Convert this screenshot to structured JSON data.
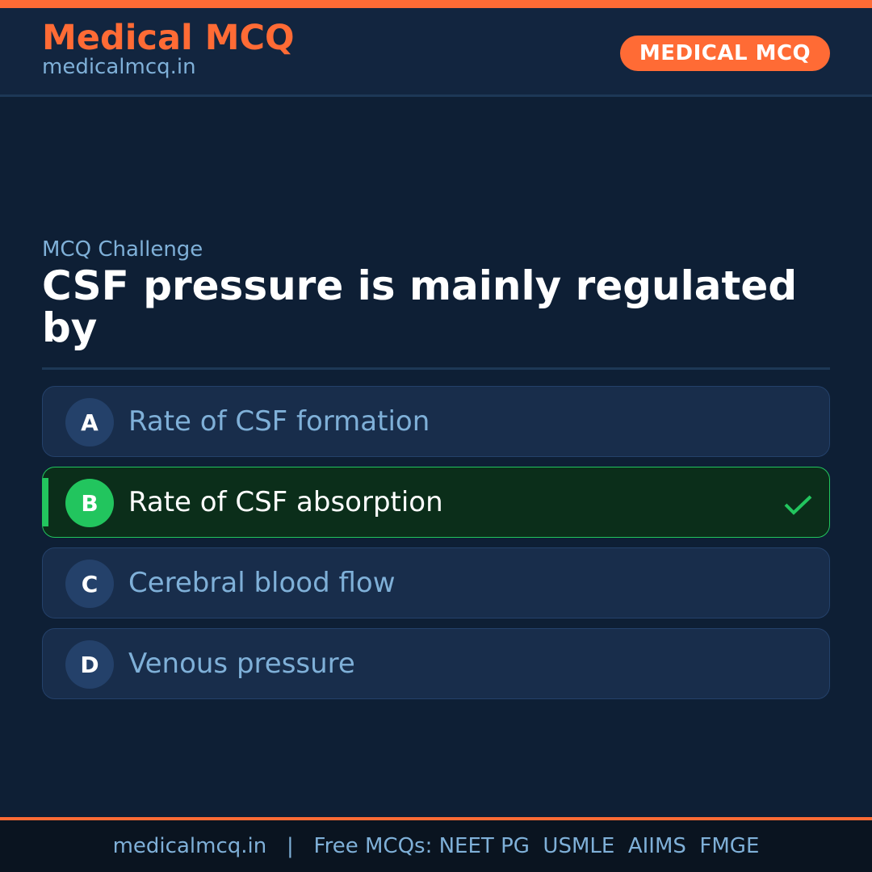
{
  "header": {
    "brand": "Medical MCQ",
    "url": "medicalmcq.in",
    "badge": "MEDICAL MCQ"
  },
  "colors": {
    "accent": "#ff6b35",
    "correct": "#22c55e",
    "background": "#0e1f35"
  },
  "quiz": {
    "label": "MCQ Challenge",
    "question": "CSF pressure is mainly regulated by",
    "options": [
      {
        "letter": "A",
        "text": "Rate of CSF formation",
        "correct": false
      },
      {
        "letter": "B",
        "text": "Rate of CSF absorption",
        "correct": true
      },
      {
        "letter": "C",
        "text": "Cerebral blood flow",
        "correct": false
      },
      {
        "letter": "D",
        "text": "Venous pressure",
        "correct": false
      }
    ],
    "correct_icon": "checkmark-icon"
  },
  "footer": {
    "text": "medicalmcq.in   |   Free MCQs: NEET PG  USMLE  AIIMS  FMGE"
  }
}
